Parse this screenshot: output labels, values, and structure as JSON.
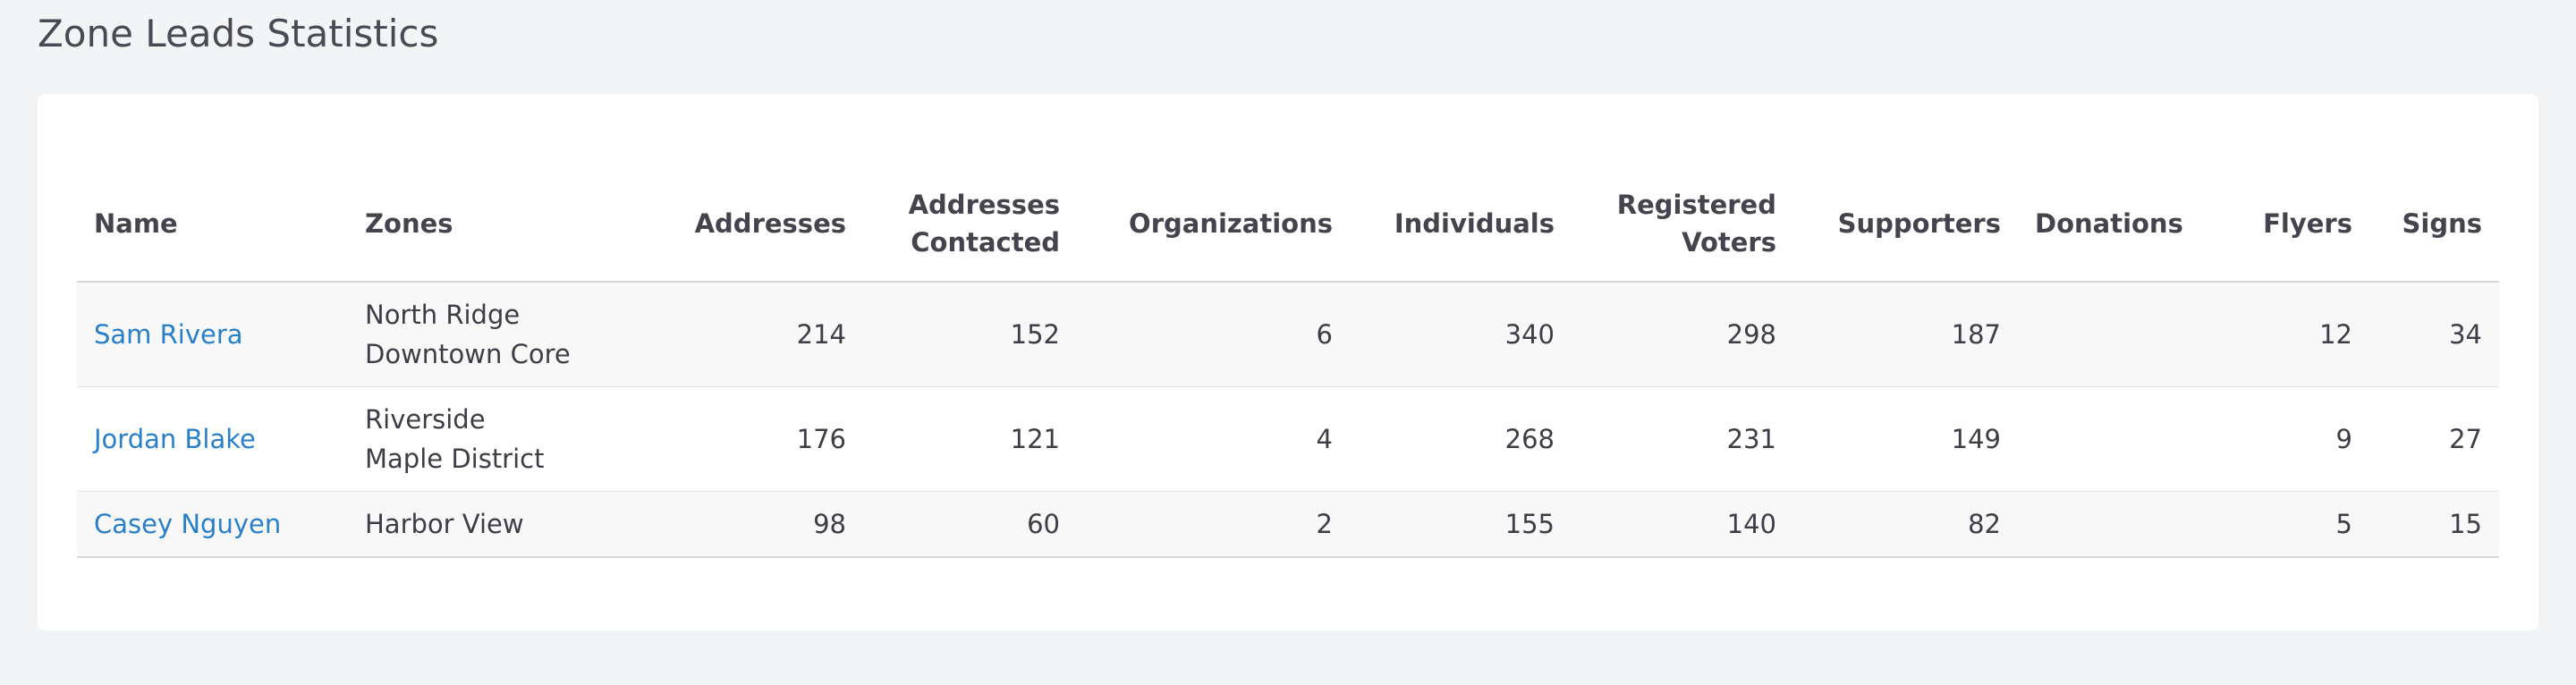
{
  "header": {
    "title": "Zone Leads Statistics"
  },
  "table": {
    "columns": [
      "Name",
      "Zones",
      "Addresses",
      "Addresses Contacted",
      "Organizations",
      "Individuals",
      "Registered Voters",
      "Supporters",
      "Donations",
      "Flyers",
      "Signs"
    ],
    "rows": [
      {
        "name": "Sam Rivera",
        "zones": [
          "North Ridge",
          "Downtown Core"
        ],
        "addresses": 214,
        "addresses_contacted": 152,
        "organizations": 6,
        "individuals": 340,
        "registered_voters": 298,
        "supporters": 187,
        "flyers": 12,
        "signs": 34
      },
      {
        "name": "Jordan Blake",
        "zones": [
          "Riverside",
          "Maple District"
        ],
        "addresses": 176,
        "addresses_contacted": 121,
        "organizations": 4,
        "individuals": 268,
        "registered_voters": 231,
        "supporters": 149,
        "flyers": 9,
        "signs": 27
      },
      {
        "name": "Casey Nguyen",
        "zones": [
          "Harbor View"
        ],
        "addresses": 98,
        "addresses_contacted": 60,
        "organizations": 2,
        "individuals": 155,
        "registered_voters": 140,
        "supporters": 82,
        "flyers": 5,
        "signs": 15
      }
    ]
  }
}
